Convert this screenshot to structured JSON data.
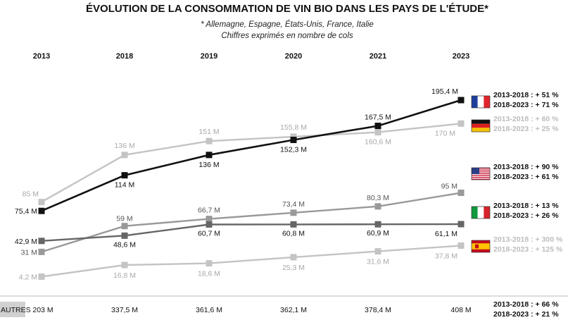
{
  "chart_data": {
    "type": "line",
    "title": "ÉVOLUTION DE LA CONSOMMATION DE VIN BIO DANS LES PAYS DE L'ÉTUDE*",
    "subtitle_line1": "* Allemagne, Espagne, États-Unis, France, Italie",
    "subtitle_line2": "Chiffres exprimés en nombre de cols",
    "categories": [
      "2013",
      "2018",
      "2019",
      "2020",
      "2021",
      "2023"
    ],
    "ylim": [
      0,
      200
    ],
    "series": [
      {
        "name": "France",
        "flag": "france-flag",
        "color": "#111111",
        "values": [
          75.4,
          114,
          136,
          152.3,
          167.5,
          195.4
        ],
        "labels": [
          "75,4 M",
          "114 M",
          "136 M",
          "152,3 M",
          "167,5 M",
          "195,4 M"
        ],
        "growth": [
          "2013-2018 : + 51 %",
          "2018-2023 : + 71 %"
        ]
      },
      {
        "name": "Allemagne",
        "flag": "germany-flag",
        "color": "#c4c4c4",
        "values": [
          85,
          136,
          151,
          155.8,
          160.6,
          170
        ],
        "labels": [
          "85 M",
          "136 M",
          "151 M",
          "155,8 M",
          "160,6 M",
          "170 M"
        ],
        "growth": [
          "2013-2018 : + 60 %",
          "2018-2023 : + 25 %"
        ]
      },
      {
        "name": "États-Unis",
        "flag": "usa-flag",
        "color": "#999999",
        "values": [
          31,
          59,
          66.7,
          73.4,
          80.3,
          95
        ],
        "labels": [
          "31 M",
          "59 M",
          "66,7 M",
          "73,4 M",
          "80,3 M",
          "95 M"
        ],
        "growth": [
          "2013-2018 : + 90 %",
          "2018-2023 : + 61 %"
        ]
      },
      {
        "name": "Italie",
        "flag": "italy-flag",
        "color": "#666666",
        "values": [
          42.9,
          48.6,
          60.7,
          60.8,
          60.9,
          61.1
        ],
        "labels": [
          "42,9 M",
          "48,6 M",
          "60,7 M",
          "60,8 M",
          "60,9 M",
          "61,1 M"
        ],
        "growth": [
          "2013-2018 : + 13 %",
          "2018-2023 : + 26 %"
        ]
      },
      {
        "name": "Espagne",
        "flag": "spain-flag",
        "color": "#c4c4c4",
        "values": [
          4.2,
          16.8,
          18.6,
          25.3,
          31.6,
          37.8
        ],
        "labels": [
          "4,2 M",
          "16,8 M",
          "18,6 M",
          "25,3 M",
          "31,6 M",
          "37,8 M"
        ],
        "growth": [
          "2013-2018 : + 300 %",
          "2018-2023 : + 125 %"
        ]
      }
    ],
    "autres": {
      "label": "AUTRES",
      "values": [
        "203 M",
        "337,5 M",
        "361,6 M",
        "362,1 M",
        "378,4 M",
        "408 M"
      ],
      "growth": [
        "2013-2018 : + 66 %",
        "2018-2023 : + 21 %"
      ]
    },
    "colors": {
      "france_blue": "#1f3f9e",
      "france_red": "#e1242b",
      "germany_black": "#111111",
      "germany_red": "#dd1f1f",
      "germany_gold": "#f4c400",
      "usa_red": "#c8102e",
      "usa_blue": "#2b3f86",
      "italy_green": "#119a3d",
      "italy_red": "#d5222b",
      "spain_red": "#c60b1e",
      "spain_yellow": "#ffc400",
      "growth_dark": "#111111",
      "growth_light": "#bdbdbd"
    }
  }
}
